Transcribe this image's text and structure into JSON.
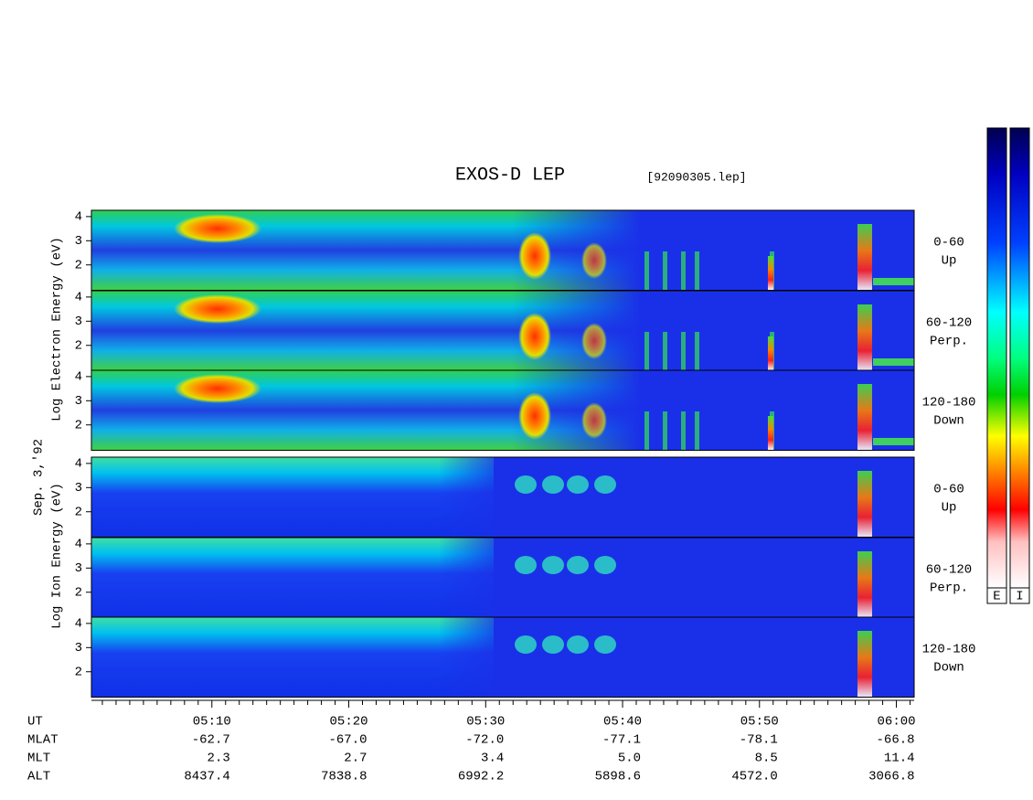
{
  "title": "EXOS-D LEP",
  "file": "[92090305.lep]",
  "date": "Sep. 3,'92",
  "groups": [
    {
      "ylabel": "Log Electron Energy (eV)",
      "panels": [
        {
          "angle": "0-60",
          "dir": "Up"
        },
        {
          "angle": "60-120",
          "dir": "Perp."
        },
        {
          "angle": "120-180",
          "dir": "Down"
        }
      ]
    },
    {
      "ylabel": "Log Ion Energy (eV)",
      "panels": [
        {
          "angle": "0-60",
          "dir": "Up"
        },
        {
          "angle": "60-120",
          "dir": "Perp."
        },
        {
          "angle": "120-180",
          "dir": "Down"
        }
      ]
    }
  ],
  "ylim": [
    0.95,
    4.26
  ],
  "yticks": [
    2,
    3,
    4
  ],
  "xlabel": "UT",
  "xlim": [
    1.2,
    61.3
  ],
  "xticks": [
    {
      "value": 10,
      "label": "05:10"
    },
    {
      "value": 20,
      "label": "05:20"
    },
    {
      "value": 30,
      "label": "05:30"
    },
    {
      "value": 40,
      "label": "05:40"
    },
    {
      "value": 50,
      "label": "05:50"
    },
    {
      "value": 60,
      "label": "06:00"
    }
  ],
  "xminorticks": [
    2,
    3,
    4,
    5,
    6,
    7,
    8,
    9,
    11,
    12,
    13,
    14,
    15,
    16,
    17,
    18,
    19,
    21,
    22,
    23,
    24,
    25,
    26,
    27,
    28,
    29,
    31,
    32,
    33,
    34,
    35,
    36,
    37,
    38,
    39,
    41,
    42,
    43,
    44,
    45,
    46,
    47,
    48,
    49,
    51,
    52,
    53,
    54,
    55,
    56,
    57,
    58,
    59,
    61
  ],
  "ephemeris": [
    {
      "name": "MLAT",
      "values": [
        "-62.7",
        "-67.0",
        "-72.0",
        "-77.1",
        "-78.1",
        "-66.8"
      ]
    },
    {
      "name": "MLT",
      "values": [
        "2.3",
        "2.7",
        "3.4",
        "5.0",
        "8.5",
        "11.4"
      ]
    },
    {
      "name": "ALT",
      "values": [
        "8437.4",
        "7838.8",
        "6992.2",
        "5898.6",
        "4572.0",
        "3066.8"
      ]
    }
  ],
  "colorbar": [
    "E",
    "I"
  ]
}
